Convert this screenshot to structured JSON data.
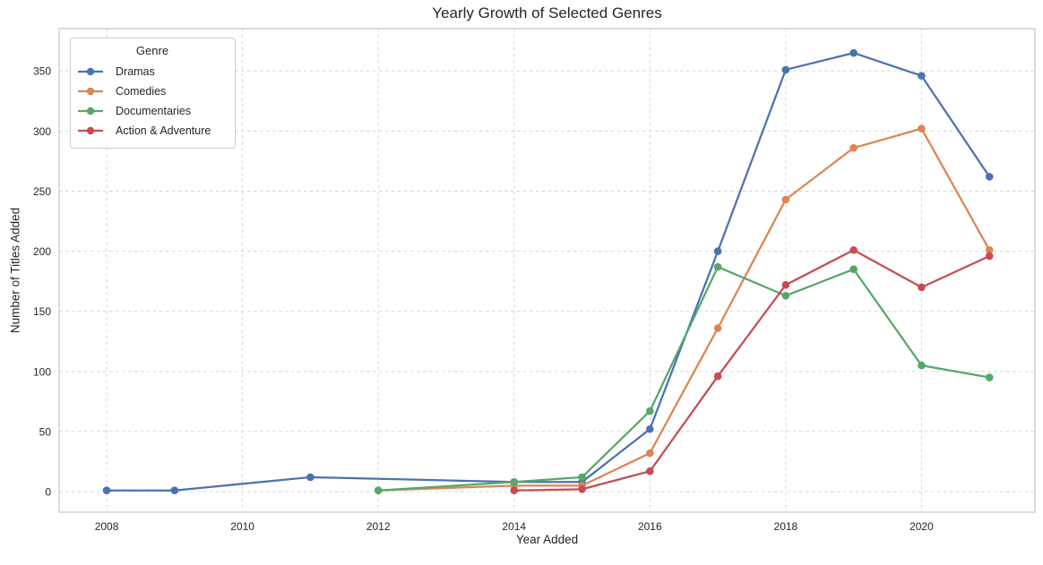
{
  "chart_data": {
    "type": "line",
    "title": "Yearly Growth of Selected Genres",
    "xlabel": "Year Added",
    "ylabel": "Number of Titles Added",
    "grid": "dashed-both-axes",
    "legend": {
      "title": "Genre",
      "position": "upper-left"
    },
    "xlim": [
      2007.3,
      2021.67
    ],
    "ylim": [
      -17.1,
      385.2
    ],
    "x_ticks": [
      2008,
      2010,
      2012,
      2014,
      2016,
      2018,
      2020
    ],
    "y_ticks": [
      0,
      50,
      100,
      150,
      200,
      250,
      300,
      350
    ],
    "series": [
      {
        "name": "Dramas",
        "color": "#4C72B0",
        "points": [
          [
            2008,
            1
          ],
          [
            2009,
            1
          ],
          [
            2011,
            12
          ],
          [
            2014,
            8
          ],
          [
            2015,
            8
          ],
          [
            2016,
            52
          ],
          [
            2017,
            200
          ],
          [
            2018,
            351
          ],
          [
            2019,
            365
          ],
          [
            2020,
            346
          ],
          [
            2021,
            262
          ]
        ]
      },
      {
        "name": "Comedies",
        "color": "#DD8452",
        "points": [
          [
            2012,
            1
          ],
          [
            2014,
            5
          ],
          [
            2015,
            5
          ],
          [
            2016,
            32
          ],
          [
            2017,
            136
          ],
          [
            2018,
            243
          ],
          [
            2019,
            286
          ],
          [
            2020,
            302
          ],
          [
            2021,
            201
          ]
        ]
      },
      {
        "name": "Documentaries",
        "color": "#55A868",
        "points": [
          [
            2012,
            1
          ],
          [
            2014,
            8
          ],
          [
            2015,
            12
          ],
          [
            2016,
            67
          ],
          [
            2017,
            187
          ],
          [
            2018,
            163
          ],
          [
            2019,
            185
          ],
          [
            2020,
            105
          ],
          [
            2021,
            95
          ]
        ]
      },
      {
        "name": "Action & Adventure",
        "color": "#C44E52",
        "points": [
          [
            2014,
            1
          ],
          [
            2015,
            2
          ],
          [
            2016,
            17
          ],
          [
            2017,
            96
          ],
          [
            2018,
            172
          ],
          [
            2019,
            201
          ],
          [
            2020,
            170
          ],
          [
            2021,
            196
          ]
        ]
      }
    ],
    "style": {
      "grid_color": "#d7d7d7",
      "spine_color": "#cccccc",
      "text_color": "#262626",
      "background": "#ffffff"
    }
  }
}
